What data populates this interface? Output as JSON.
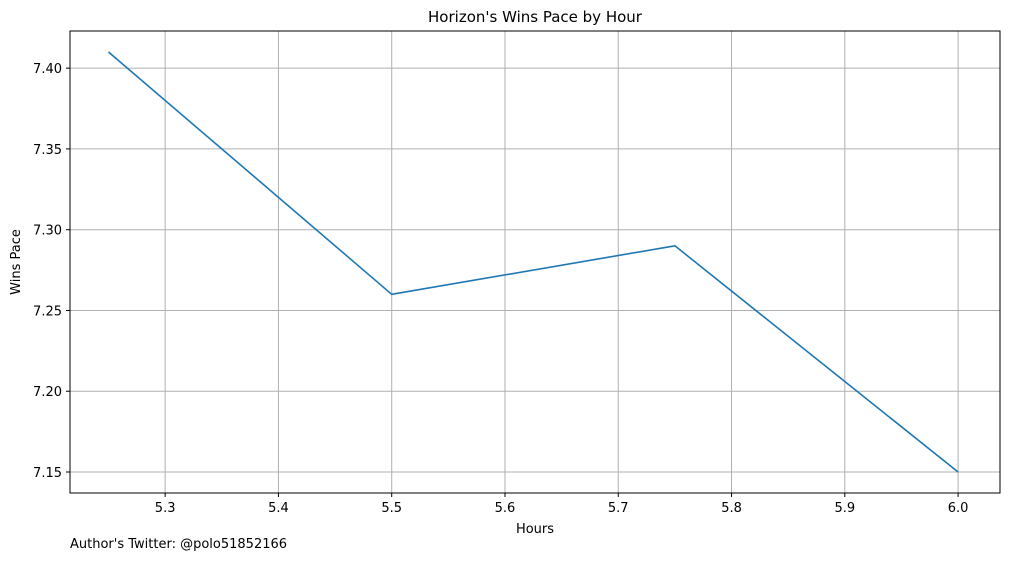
{
  "chart_data": {
    "type": "line",
    "title": "Horizon's Wins Pace by Hour",
    "xlabel": "Hours",
    "ylabel": "Wins Pace",
    "xlim": [
      5.216,
      6.037
    ],
    "ylim": [
      7.137,
      7.423
    ],
    "xticks": [
      5.3,
      5.4,
      5.5,
      5.6,
      5.7,
      5.8,
      5.9,
      6.0
    ],
    "xtick_labels": [
      "5.3",
      "5.4",
      "5.5",
      "5.6",
      "5.7",
      "5.8",
      "5.9",
      "6.0"
    ],
    "yticks": [
      7.15,
      7.2,
      7.25,
      7.3,
      7.35,
      7.4
    ],
    "ytick_labels": [
      "7.15",
      "7.20",
      "7.25",
      "7.30",
      "7.35",
      "7.40"
    ],
    "grid": true,
    "series": [
      {
        "color": "#1f77b4",
        "x": [
          5.25,
          5.5,
          5.75,
          6.0
        ],
        "y": [
          7.41,
          7.26,
          7.29,
          7.15
        ]
      }
    ]
  },
  "footnote": "Author's Twitter: @polo51852166"
}
